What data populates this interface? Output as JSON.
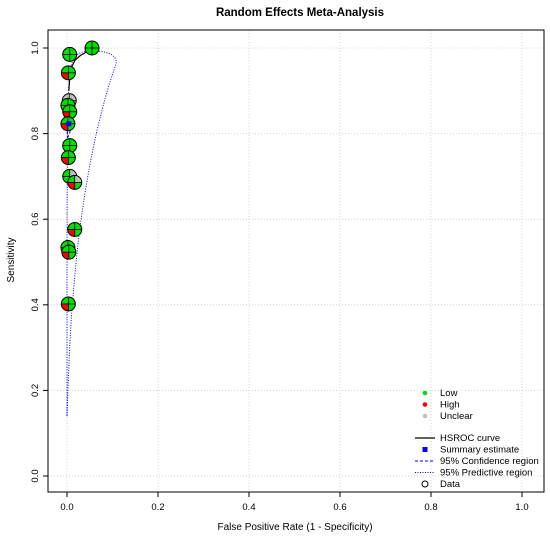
{
  "chart_data": {
    "type": "scatter",
    "title": "Random Effects Meta-Analysis",
    "xlabel": "False Positive Rate (1 - Specificity)",
    "ylabel": "Sensitivity",
    "xlim": [
      0,
      1
    ],
    "ylim": [
      0,
      1
    ],
    "xticks": [
      "0.0",
      "0.2",
      "0.4",
      "0.6",
      "0.8",
      "1.0"
    ],
    "yticks": [
      "0.0",
      "0.2",
      "0.4",
      "0.6",
      "0.8",
      "1.0"
    ],
    "grid": true,
    "legend_position": "bottom-right",
    "legend_quality": [
      {
        "label": "Low",
        "color": "#00e000"
      },
      {
        "label": "High",
        "color": "#ff0000"
      },
      {
        "label": "Unclear",
        "color": "#c0c0c0"
      }
    ],
    "legend_lines": [
      {
        "label": "HSROC curve",
        "style": "solid",
        "color": "#000000"
      },
      {
        "label": "Summary estimate",
        "style": "square",
        "color": "#0000ff"
      },
      {
        "label": "95% Confidence region",
        "style": "dashed",
        "color": "#0000ff"
      },
      {
        "label": "95% Predictive region",
        "style": "dotted",
        "color": "#0000ff"
      },
      {
        "label": "Data",
        "style": "circle",
        "color": "#000000"
      }
    ],
    "colors": {
      "low": "#00e000",
      "high": "#ff0000",
      "unclear": "#c0c0c0",
      "summary": "#0000ff"
    },
    "studies": [
      {
        "x": 0.055,
        "y": 1.0,
        "quadrants": [
          "low",
          "low",
          "low",
          "low"
        ]
      },
      {
        "x": 0.006,
        "y": 0.985,
        "quadrants": [
          "low",
          "low",
          "low",
          "low"
        ]
      },
      {
        "x": 0.003,
        "y": 0.942,
        "quadrants": [
          "low",
          "low",
          "high",
          "low"
        ]
      },
      {
        "x": 0.005,
        "y": 0.877,
        "quadrants": [
          "unclear",
          "unclear",
          "unclear",
          "unclear"
        ]
      },
      {
        "x": 0.002,
        "y": 0.866,
        "quadrants": [
          "low",
          "low",
          "low",
          "low"
        ]
      },
      {
        "x": 0.006,
        "y": 0.851,
        "quadrants": [
          "low",
          "low",
          "high",
          "low"
        ]
      },
      {
        "x": 0.002,
        "y": 0.823,
        "quadrants": [
          "low",
          "low",
          "high",
          "low"
        ]
      },
      {
        "x": 0.006,
        "y": 0.772,
        "quadrants": [
          "low",
          "low",
          "low",
          "low"
        ]
      },
      {
        "x": 0.003,
        "y": 0.744,
        "quadrants": [
          "low",
          "low",
          "high",
          "low"
        ]
      },
      {
        "x": 0.006,
        "y": 0.7,
        "quadrants": [
          "unclear",
          "low",
          "low",
          "low"
        ]
      },
      {
        "x": 0.017,
        "y": 0.686,
        "quadrants": [
          "unclear",
          "low",
          "high",
          "low"
        ]
      },
      {
        "x": 0.017,
        "y": 0.576,
        "quadrants": [
          "low",
          "low",
          "high",
          "low"
        ]
      },
      {
        "x": 0.002,
        "y": 0.534,
        "quadrants": [
          "low",
          "low",
          "low",
          "low"
        ]
      },
      {
        "x": 0.004,
        "y": 0.523,
        "quadrants": [
          "low",
          "low",
          "high",
          "low"
        ]
      },
      {
        "x": 0.003,
        "y": 0.402,
        "quadrants": [
          "low",
          "low",
          "high",
          "low"
        ]
      }
    ],
    "summary_estimate": {
      "x": 0.004,
      "y": 0.823
    },
    "hsroc_curve": [
      [
        0.004,
        0.9
      ],
      [
        0.006,
        0.93
      ],
      [
        0.01,
        0.955
      ],
      [
        0.018,
        0.972
      ],
      [
        0.03,
        0.983
      ],
      [
        0.045,
        0.992
      ],
      [
        0.06,
        0.998
      ]
    ],
    "confidence_region": [
      [
        0.001,
        0.79
      ],
      [
        0.006,
        0.8
      ],
      [
        0.008,
        0.823
      ],
      [
        0.006,
        0.845
      ],
      [
        0.001,
        0.855
      ],
      [
        0.0,
        0.823
      ],
      [
        0.001,
        0.79
      ]
    ],
    "predictive_region": [
      [
        0.0,
        0.14
      ],
      [
        0.005,
        0.3
      ],
      [
        0.015,
        0.45
      ],
      [
        0.03,
        0.6
      ],
      [
        0.055,
        0.76
      ],
      [
        0.085,
        0.89
      ],
      [
        0.105,
        0.955
      ],
      [
        0.11,
        0.97
      ],
      [
        0.1,
        0.985
      ],
      [
        0.075,
        0.993
      ],
      [
        0.04,
        0.995
      ],
      [
        0.015,
        0.98
      ],
      [
        0.004,
        0.94
      ],
      [
        0.001,
        0.8
      ],
      [
        0.0,
        0.55
      ],
      [
        0.0,
        0.14
      ]
    ]
  }
}
